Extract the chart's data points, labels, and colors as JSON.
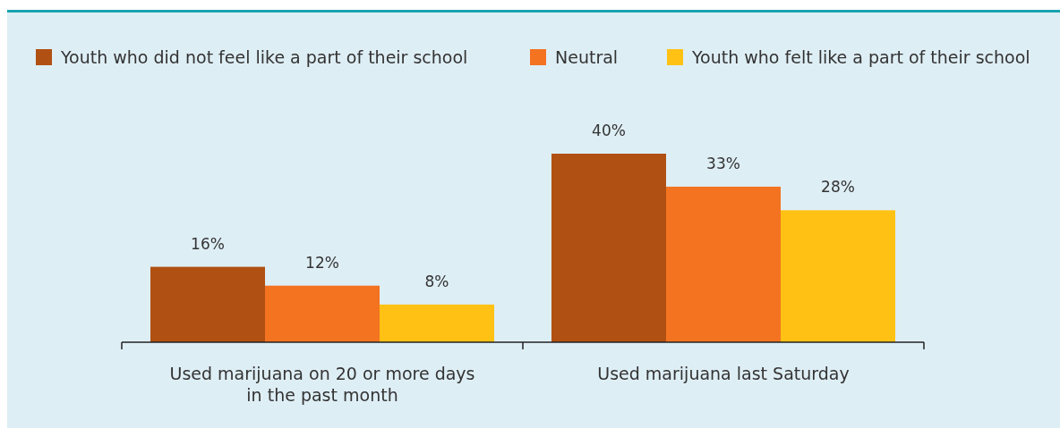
{
  "chart_data": {
    "type": "bar",
    "categories": [
      "Used marijuana on 20 or more days in the past month",
      "Used marijuana last Saturday"
    ],
    "series": [
      {
        "name": "Youth who did not feel like a part of their school",
        "color": "#b05012",
        "values": [
          16,
          40
        ],
        "value_labels": [
          "16%",
          "40%"
        ]
      },
      {
        "name": "Neutral",
        "color": "#f37321",
        "values": [
          12,
          33
        ],
        "value_labels": [
          "12%",
          "33%"
        ]
      },
      {
        "name": "Youth who felt like a part of their school",
        "color": "#ffc214",
        "values": [
          8,
          28
        ],
        "value_labels": [
          "8%",
          "28%"
        ]
      }
    ],
    "legend": "top"
  }
}
